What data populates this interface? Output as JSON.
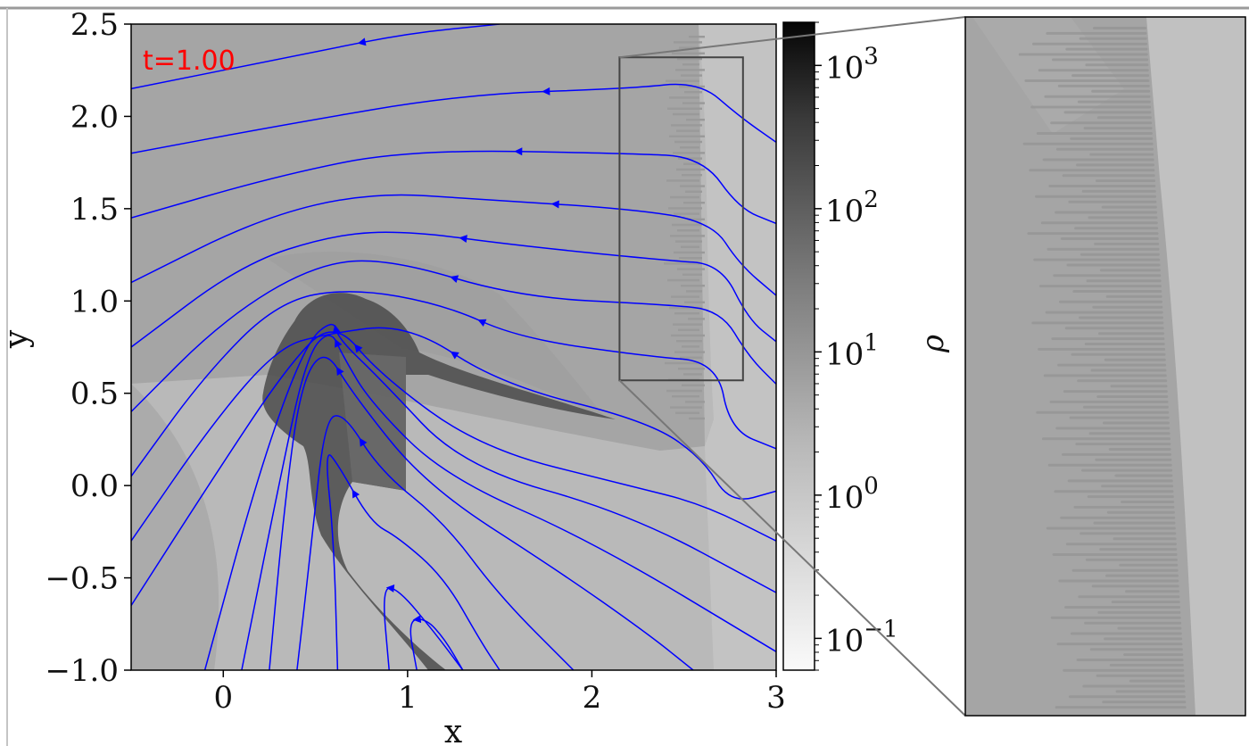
{
  "chart_data": {
    "type": "heatmap",
    "description_title": "",
    "timestamp": "t=1.00",
    "timestamp_color": "#ff0000",
    "xlabel": "x",
    "ylabel": "y",
    "xlim": [
      -0.5,
      3.0
    ],
    "ylim": [
      -1.0,
      2.5
    ],
    "x_ticks": [
      {
        "value": 0,
        "label": "0"
      },
      {
        "value": 1,
        "label": "1"
      },
      {
        "value": 2,
        "label": "2"
      },
      {
        "value": 3,
        "label": "3"
      }
    ],
    "y_ticks": [
      {
        "value": 2.5,
        "label": "2.5"
      },
      {
        "value": 2.0,
        "label": "2.0"
      },
      {
        "value": 1.5,
        "label": "1.5"
      },
      {
        "value": 1.0,
        "label": "1.0"
      },
      {
        "value": 0.5,
        "label": "0.5"
      },
      {
        "value": 0.0,
        "label": "0.0"
      },
      {
        "value": -0.5,
        "label": "−0.5"
      },
      {
        "value": -1.0,
        "label": "−1.0"
      }
    ],
    "colorbar": {
      "label": "ρ",
      "scale": "log",
      "range": [
        0.06,
        2000
      ],
      "colormap": "Greys",
      "ticks": [
        {
          "exp": 3,
          "base": "10",
          "sup": "3"
        },
        {
          "exp": 2,
          "base": "10",
          "sup": "2"
        },
        {
          "exp": 1,
          "base": "10",
          "sup": "1"
        },
        {
          "exp": 0,
          "base": "10",
          "sup": "0"
        },
        {
          "exp": -1,
          "base": "10",
          "sup": "−1"
        }
      ]
    },
    "streamline_color": "#0000ff",
    "zoom_box": {
      "x": [
        2.15,
        2.82
      ],
      "y": [
        0.57,
        2.32
      ]
    },
    "streamlines": [
      [
        [
          -0.5,
          2.15
        ],
        [
          0.5,
          2.35
        ],
        [
          1.0,
          2.45
        ],
        [
          1.5,
          2.5
        ]
      ],
      [
        [
          -0.5,
          1.8
        ],
        [
          0.3,
          1.95
        ],
        [
          1.3,
          2.12
        ],
        [
          2.2,
          2.15
        ],
        [
          2.58,
          2.19
        ],
        [
          2.8,
          2.0
        ],
        [
          3.0,
          1.86
        ]
      ],
      [
        [
          -0.5,
          1.45
        ],
        [
          0.3,
          1.68
        ],
        [
          1.0,
          1.82
        ],
        [
          2.2,
          1.8
        ],
        [
          2.6,
          1.78
        ],
        [
          2.8,
          1.5
        ],
        [
          3.0,
          1.42
        ]
      ],
      [
        [
          -0.5,
          1.1
        ],
        [
          0.2,
          1.45
        ],
        [
          0.8,
          1.59
        ],
        [
          1.4,
          1.55
        ],
        [
          2.2,
          1.5
        ],
        [
          2.65,
          1.43
        ],
        [
          2.8,
          1.2
        ],
        [
          3.0,
          1.03
        ]
      ],
      [
        [
          -0.5,
          0.75
        ],
        [
          0.1,
          1.2
        ],
        [
          0.6,
          1.36
        ],
        [
          1.0,
          1.38
        ],
        [
          1.6,
          1.3
        ],
        [
          2.4,
          1.22
        ],
        [
          2.7,
          1.2
        ],
        [
          2.85,
          0.9
        ],
        [
          3.0,
          0.78
        ]
      ],
      [
        [
          -0.5,
          0.4
        ],
        [
          0.0,
          0.9
        ],
        [
          0.5,
          1.2
        ],
        [
          0.9,
          1.23
        ],
        [
          1.6,
          1.02
        ],
        [
          2.4,
          0.98
        ],
        [
          2.7,
          0.95
        ],
        [
          2.85,
          0.7
        ],
        [
          3.0,
          0.55
        ]
      ],
      [
        [
          -0.5,
          0.05
        ],
        [
          -0.1,
          0.6
        ],
        [
          0.3,
          1.0
        ],
        [
          0.7,
          1.07
        ],
        [
          1.2,
          0.98
        ],
        [
          1.6,
          0.8
        ],
        [
          2.3,
          0.7
        ],
        [
          2.68,
          0.67
        ],
        [
          2.75,
          0.3
        ],
        [
          3.0,
          0.2
        ]
      ],
      [
        [
          -0.5,
          -0.3
        ],
        [
          -0.05,
          0.35
        ],
        [
          0.3,
          0.75
        ],
        [
          0.55,
          0.82
        ],
        [
          1.0,
          0.88
        ],
        [
          1.5,
          0.55
        ],
        [
          2.3,
          0.35
        ],
        [
          2.6,
          0.15
        ],
        [
          2.75,
          -0.1
        ],
        [
          3.0,
          -0.03
        ]
      ],
      [
        [
          -0.5,
          -0.65
        ],
        [
          -0.05,
          0.05
        ],
        [
          0.35,
          0.65
        ],
        [
          0.6,
          0.9
        ],
        [
          0.85,
          0.6
        ],
        [
          1.4,
          0.2
        ],
        [
          2.2,
          0.0
        ],
        [
          2.6,
          -0.1
        ],
        [
          3.0,
          -0.3
        ]
      ],
      [
        [
          -0.1,
          -1.0
        ],
        [
          0.2,
          0.1
        ],
        [
          0.45,
          0.78
        ],
        [
          0.6,
          0.9
        ],
        [
          0.62,
          0.8
        ],
        [
          0.85,
          0.58
        ],
        [
          1.3,
          0.1
        ],
        [
          2.2,
          -0.15
        ],
        [
          3.0,
          -0.58
        ]
      ],
      [
        [
          0.1,
          -1.0
        ],
        [
          0.3,
          0.0
        ],
        [
          0.45,
          0.7
        ],
        [
          0.58,
          0.85
        ],
        [
          0.65,
          0.7
        ],
        [
          0.8,
          0.45
        ],
        [
          1.2,
          0.05
        ],
        [
          2.0,
          -0.3
        ],
        [
          3.0,
          -0.9
        ]
      ],
      [
        [
          0.25,
          -1.0
        ],
        [
          0.33,
          -0.12
        ],
        [
          0.42,
          0.55
        ],
        [
          0.55,
          0.75
        ],
        [
          0.7,
          0.5
        ],
        [
          1.1,
          0.0
        ],
        [
          1.8,
          -0.45
        ],
        [
          2.3,
          -0.8
        ],
        [
          2.55,
          -1.0
        ]
      ],
      [
        [
          0.4,
          -1.0
        ],
        [
          0.48,
          -0.3
        ],
        [
          0.55,
          0.35
        ],
        [
          0.65,
          0.4
        ],
        [
          0.85,
          0.08
        ],
        [
          1.2,
          -0.2
        ],
        [
          1.5,
          -0.6
        ],
        [
          1.9,
          -1.0
        ]
      ],
      [
        [
          0.62,
          -1.0
        ],
        [
          0.6,
          -0.3
        ],
        [
          0.55,
          0.2
        ],
        [
          0.62,
          0.12
        ],
        [
          0.8,
          -0.2
        ],
        [
          0.95,
          -0.28
        ],
        [
          1.2,
          -0.5
        ],
        [
          1.4,
          -0.85
        ],
        [
          1.5,
          -1.0
        ]
      ],
      [
        [
          0.9,
          -1.0
        ],
        [
          0.86,
          -0.55
        ],
        [
          0.95,
          -0.56
        ],
        [
          1.15,
          -0.8
        ],
        [
          1.3,
          -1.0
        ]
      ],
      [
        [
          1.05,
          -1.0
        ],
        [
          1.0,
          -0.73
        ],
        [
          1.1,
          -0.72
        ],
        [
          1.2,
          -0.83
        ],
        [
          1.3,
          -1.0
        ]
      ]
    ]
  }
}
